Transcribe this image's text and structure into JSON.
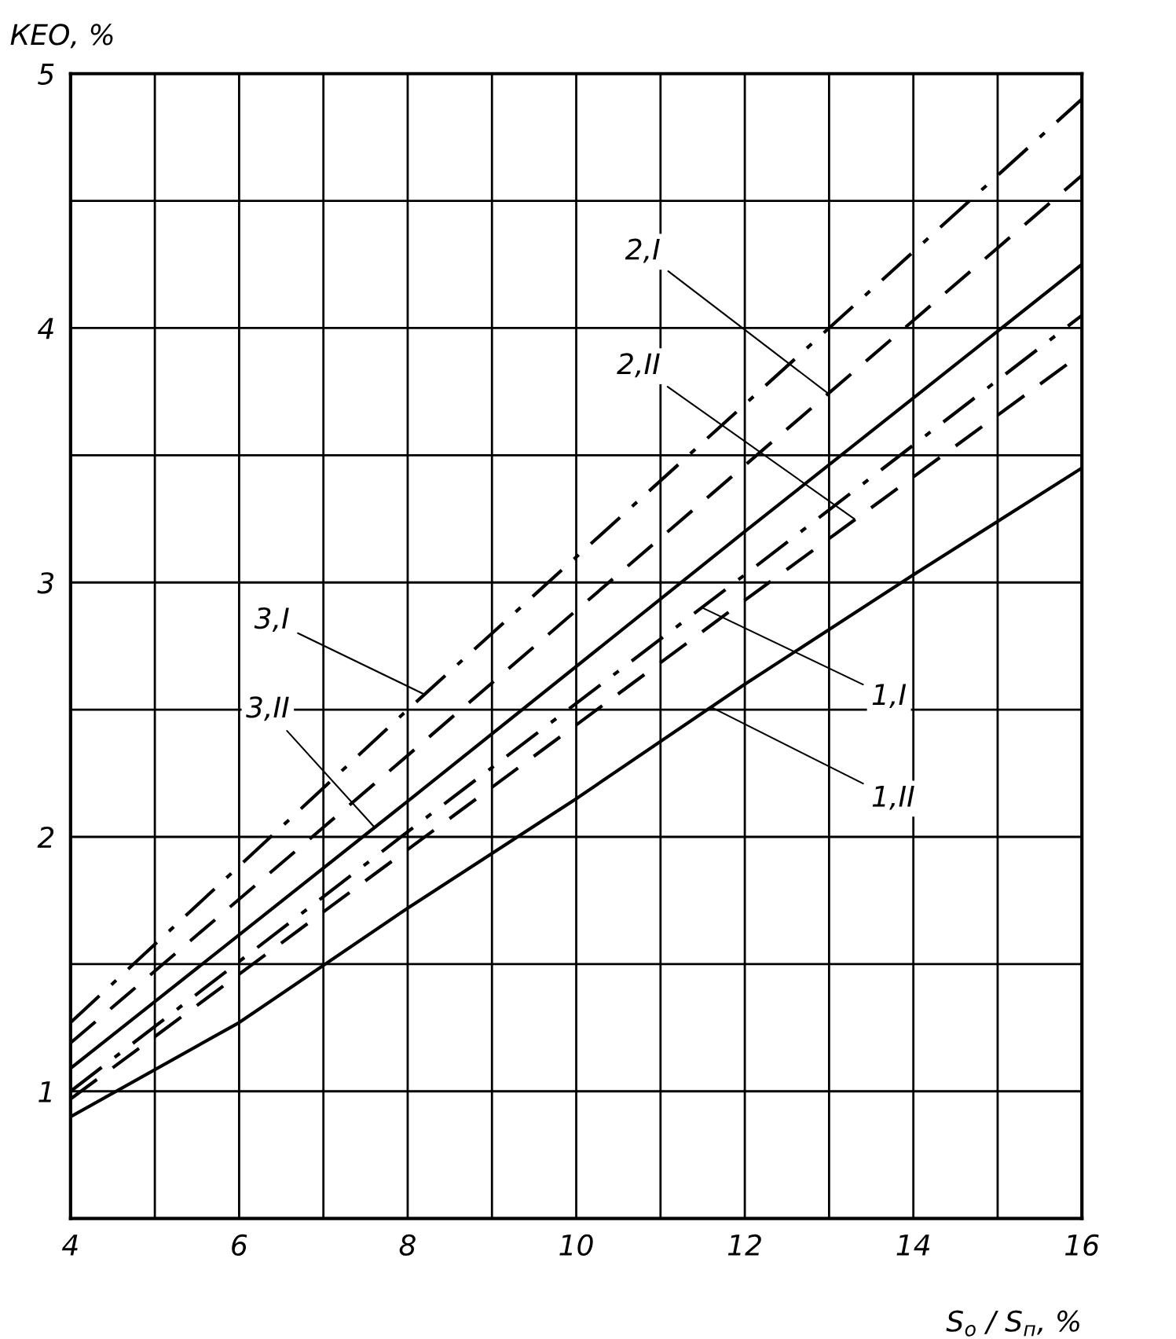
{
  "chart_data": {
    "type": "line",
    "xlabel": "S$_{о}$ / S$_{п}$, %",
    "ylabel": "КЕО, %",
    "xlim": [
      4,
      16
    ],
    "xticks": [
      4,
      {
        "value": 5,
        "label": null
      },
      6,
      {
        "value": 7,
        "label": null
      },
      8,
      {
        "value": 9,
        "label": null
      },
      10,
      {
        "value": 11,
        "label": null
      },
      12,
      {
        "value": 13,
        "label": null
      },
      14,
      {
        "value": 15,
        "label": null
      },
      16
    ],
    "ylim": [
      0.5,
      5
    ],
    "yticks": [
      {
        "value": 0.5,
        "label": null
      },
      1,
      {
        "value": 1.5,
        "label": null
      },
      2,
      {
        "value": 2.5,
        "label": null
      },
      3,
      {
        "value": 3.5,
        "label": null
      },
      4,
      {
        "value": 4.5,
        "label": null
      },
      5
    ],
    "grid": true,
    "marker": "none",
    "annotations": [
      {
        "text": "3,I",
        "x": 8.2,
        "y": 2.56
      },
      {
        "text": "2,I",
        "x": 13,
        "y": 3.74
      },
      {
        "text": "3,II",
        "x": 7.6,
        "y": 2.04
      },
      {
        "text": "1,I",
        "x": 11.5,
        "y": 2.9
      },
      {
        "text": "2,II",
        "x": 13.3,
        "y": 3.25
      },
      {
        "text": "1,II",
        "x": 11.6,
        "y": 2.51
      }
    ],
    "series": [
      {
        "color": "#000000",
        "line_style": "dashdot",
        "x": [
          4,
          8,
          12,
          16
        ],
        "values": [
          1.27,
          2.5,
          3.7,
          4.9
        ]
      },
      {
        "color": "#000000",
        "line_style": "dashed",
        "x": [
          4,
          8,
          12,
          16
        ],
        "values": [
          1.19,
          2.32,
          3.46,
          4.6
        ]
      },
      {
        "color": "#000000",
        "line_style": "solid",
        "x": [
          4,
          8,
          12,
          16
        ],
        "values": [
          1.09,
          2.14,
          3.2,
          4.25
        ]
      },
      {
        "color": "#000000",
        "line_style": "dashdot",
        "x": [
          4,
          8,
          12,
          16
        ],
        "values": [
          1.0,
          2.02,
          3.03,
          4.05
        ]
      },
      {
        "color": "#000000",
        "line_style": "dashed",
        "x": [
          4,
          8,
          12,
          16
        ],
        "values": [
          0.97,
          1.95,
          2.93,
          3.9
        ]
      },
      {
        "color": "#000000",
        "line_style": "solid",
        "x": [
          4,
          6,
          8,
          10,
          12,
          14,
          16
        ],
        "values": [
          0.9,
          1.27,
          1.72,
          2.15,
          2.6,
          3.03,
          3.45
        ]
      }
    ]
  }
}
